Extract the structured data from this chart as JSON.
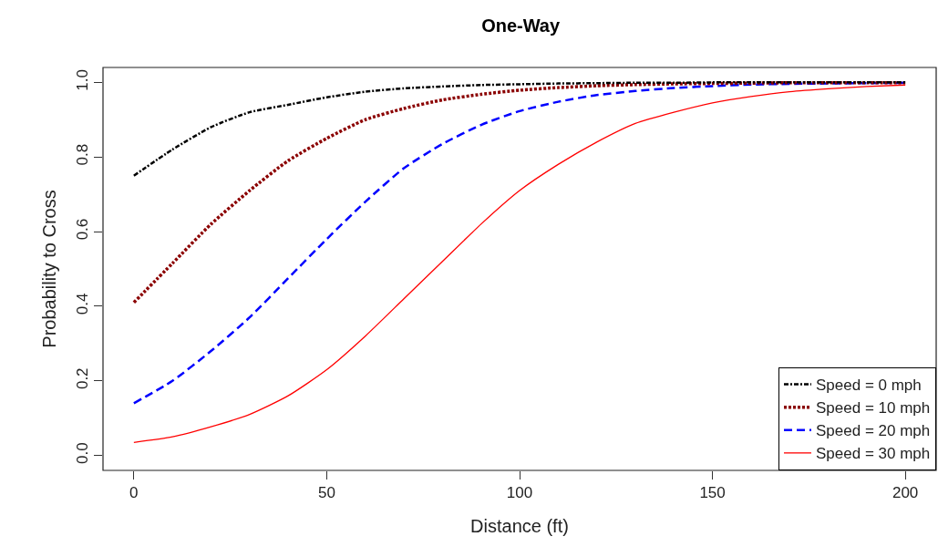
{
  "chart_data": {
    "type": "line",
    "title": "One-Way",
    "xlabel": "Distance (ft)",
    "ylabel": "Probability to Cross",
    "x": [
      0,
      10,
      20,
      30,
      40,
      50,
      60,
      70,
      80,
      90,
      100,
      110,
      120,
      130,
      140,
      150,
      160,
      170,
      180,
      190,
      200
    ],
    "series": [
      {
        "name": "Speed = 0 mph",
        "color": "#000000",
        "line_style": "dashdot",
        "values": [
          0.75,
          0.82,
          0.88,
          0.92,
          0.94,
          0.96,
          0.975,
          0.984,
          0.989,
          0.993,
          0.995,
          0.997,
          0.998,
          0.999,
          0.999,
          1.0,
          1.0,
          1.0,
          1.0,
          1.0,
          1.0
        ]
      },
      {
        "name": "Speed = 10 mph",
        "color": "#8b0000",
        "line_style": "dotted",
        "values": [
          0.41,
          0.515,
          0.62,
          0.71,
          0.79,
          0.85,
          0.9,
          0.93,
          0.953,
          0.968,
          0.979,
          0.986,
          0.991,
          0.994,
          0.996,
          0.997,
          0.998,
          0.999,
          0.999,
          0.999,
          0.999
        ]
      },
      {
        "name": "Speed = 20 mph",
        "color": "#0000ff",
        "line_style": "dashed",
        "values": [
          0.14,
          0.2,
          0.28,
          0.37,
          0.475,
          0.58,
          0.68,
          0.77,
          0.835,
          0.886,
          0.923,
          0.948,
          0.966,
          0.977,
          0.985,
          0.99,
          0.994,
          0.996,
          0.997,
          0.998,
          0.999
        ]
      },
      {
        "name": "Speed = 30 mph",
        "color": "#ff0000",
        "line_style": "solid",
        "values": [
          0.035,
          0.05,
          0.077,
          0.11,
          0.16,
          0.23,
          0.32,
          0.42,
          0.52,
          0.62,
          0.71,
          0.78,
          0.84,
          0.89,
          0.92,
          0.945,
          0.962,
          0.975,
          0.983,
          0.989,
          0.993
        ]
      }
    ],
    "xlim": [
      -8,
      208
    ],
    "xticks": [
      0,
      50,
      100,
      150,
      200
    ],
    "ylim": [
      -0.04,
      1.04
    ],
    "yticks": [
      {
        "value": 0,
        "label": "0.0"
      },
      {
        "value": 0.2,
        "label": "0.2"
      },
      {
        "value": 0.4,
        "label": "0.4"
      },
      {
        "value": 0.6,
        "label": "0.6"
      },
      {
        "value": 0.8,
        "label": "0.8"
      },
      {
        "value": 1,
        "label": "1.0"
      }
    ],
    "grid": false,
    "legend": "bottom right",
    "marker": "none"
  }
}
